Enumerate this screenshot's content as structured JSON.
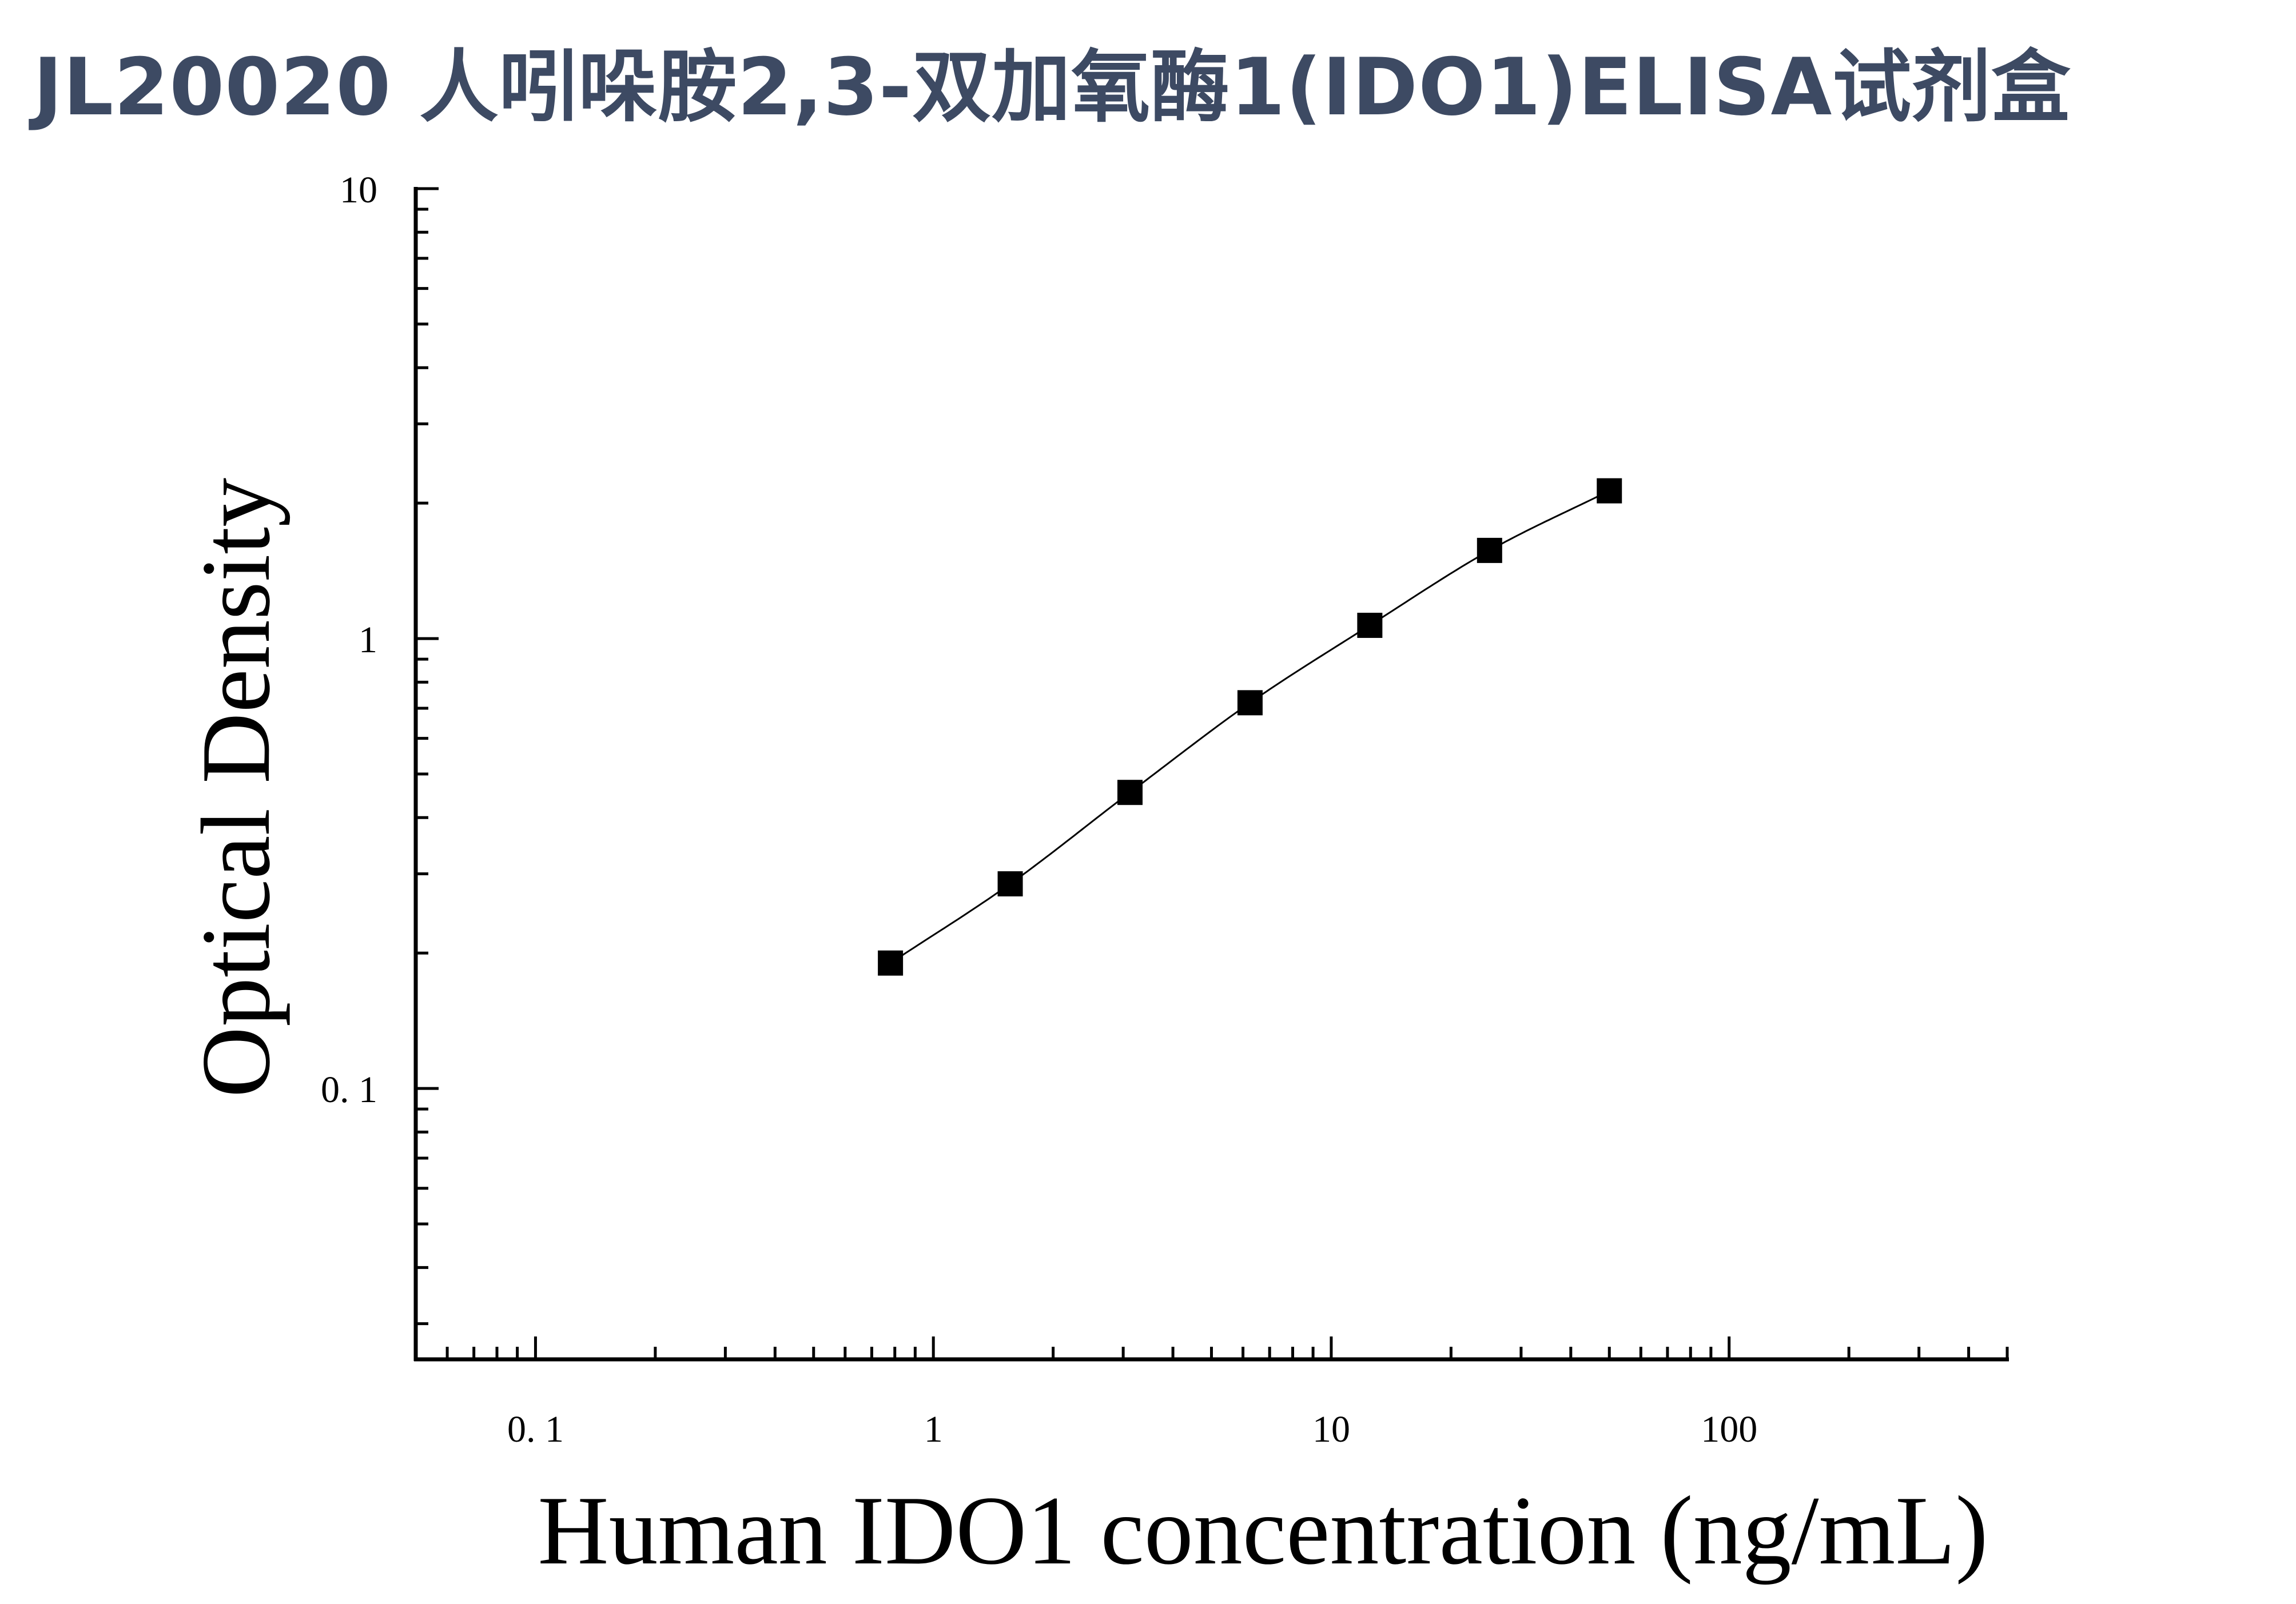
{
  "page": {
    "title": "JL20020 人吲哚胺2,3-双加氧酶1(IDO1)ELISA试剂盒"
  },
  "chart_data": {
    "type": "scatter",
    "title": "JL20020 人吲哚胺2,3-双加氧酶1(IDO1)ELISA试剂盒",
    "xlabel": "Human IDO1 concentration (ng/mL)",
    "ylabel": "Optical Density",
    "x_scale": "log",
    "y_scale": "log",
    "xlim": [
      0.05,
      500
    ],
    "ylim": [
      0.025,
      10
    ],
    "x_ticks": [
      {
        "value": 0.1,
        "label": "0. 1"
      },
      {
        "value": 1,
        "label": "1"
      },
      {
        "value": 10,
        "label": "10"
      },
      {
        "value": 100,
        "label": "100"
      }
    ],
    "y_ticks": [
      {
        "value": 0.1,
        "label": "0. 1"
      },
      {
        "value": 1,
        "label": "1"
      },
      {
        "value": 10,
        "label": "10"
      }
    ],
    "grid": false,
    "legend": "none",
    "series": [
      {
        "marker": "square",
        "fit": "smooth-curve",
        "color": "#000000",
        "x": [
          0.78,
          1.56,
          3.12,
          6.25,
          12.5,
          25,
          50
        ],
        "y": [
          0.19,
          0.285,
          0.455,
          0.72,
          1.07,
          1.57,
          2.13
        ]
      }
    ]
  }
}
